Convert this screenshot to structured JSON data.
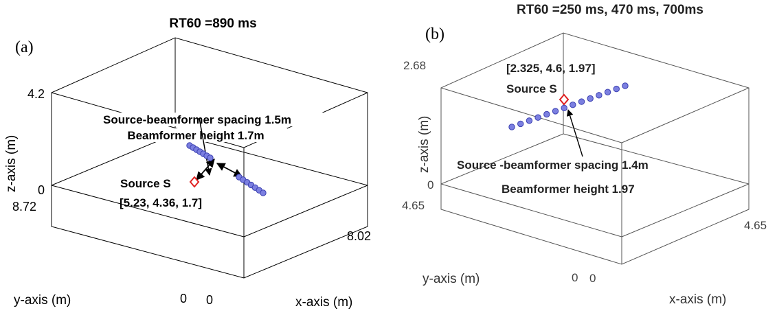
{
  "panel_a": {
    "tag": "(a)",
    "title": "RT60 =890 ms",
    "z_axis_label": "z-axis (m)",
    "y_axis_label": "y-axis (m)",
    "x_axis_label": "x-axis (m)",
    "z_tick_top": "4.2",
    "z_tick_bottom": "0",
    "y_tick_top": "8.72",
    "y_tick_bottom": "0",
    "x_tick_left": "0",
    "x_tick_right": "8.02",
    "annotation_spacing": "Source-beamformer spacing 1.5m",
    "annotation_height": "Beamformer height 1.7m",
    "source_label": "Source S",
    "source_coords": "[5.23, 4.36, 1.7]",
    "mic_count_segment_1": 7,
    "mic_count_segment_2": 7
  },
  "panel_b": {
    "tag": "(b)",
    "title": "RT60 =250 ms, 470 ms, 700ms",
    "z_axis_label": "z-axis (m)",
    "y_axis_label": "y-axis (m)",
    "x_axis_label": "x-axis (m)",
    "z_tick_top": "2.68",
    "z_tick_bottom": "0",
    "y_tick_top": "4.65",
    "y_tick_bottom": "0",
    "x_tick_left": "0",
    "x_tick_right": "4.65",
    "source_coords": "[2.325, 4.6, 1.97]",
    "source_label": "Source S",
    "annotation_spacing": "Source -beamformer spacing 1.4m",
    "annotation_height": "Beamformer height 1.97",
    "mic_count": 14
  },
  "colors": {
    "mic_fill": "#7b7fe0",
    "mic_stroke": "#3a3fb0",
    "source_marker": "#e02020"
  }
}
